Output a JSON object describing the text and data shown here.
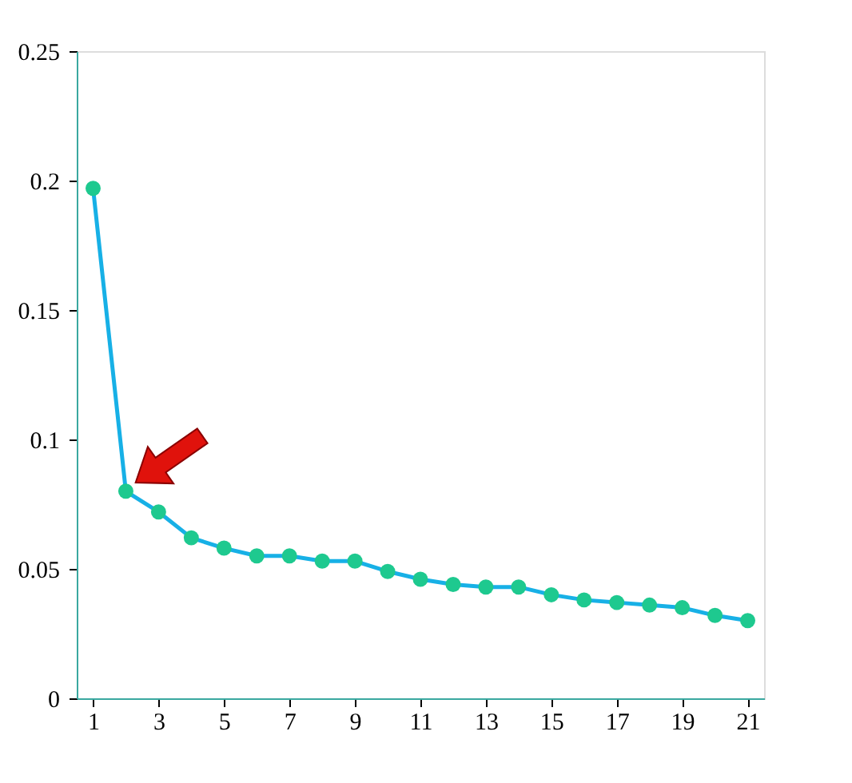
{
  "chart_data": {
    "type": "line",
    "x": [
      1,
      2,
      3,
      4,
      5,
      6,
      7,
      8,
      9,
      10,
      11,
      12,
      13,
      14,
      15,
      16,
      17,
      18,
      19,
      20,
      21
    ],
    "series": [
      {
        "color": "#17b0e6",
        "values": [
          0.197,
          0.08,
          0.072,
          0.062,
          0.058,
          0.055,
          0.055,
          0.053,
          0.053,
          0.049,
          0.046,
          0.044,
          0.043,
          0.043,
          0.04,
          0.038,
          0.037,
          0.036,
          0.035,
          0.032,
          0.03
        ]
      }
    ],
    "marker": "circle",
    "line_style": "solid",
    "grid": false,
    "xlim": [
      0.5,
      21.5
    ],
    "xticks": [
      1,
      3,
      5,
      7,
      9,
      11,
      13,
      15,
      17,
      19,
      21
    ],
    "ylim": [
      0,
      0.25
    ],
    "yticks": [
      0,
      0.05,
      0.1,
      0.15,
      0.2,
      0.25
    ]
  }
}
